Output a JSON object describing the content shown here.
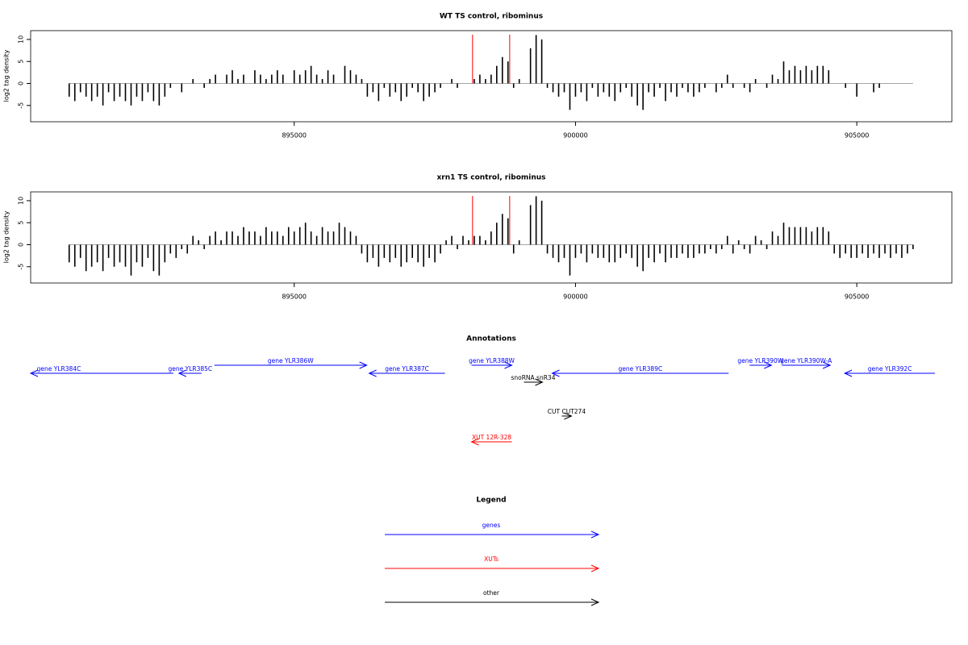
{
  "chart_data": [
    {
      "type": "bar",
      "title": "WT TS control, ribominus",
      "ylabel": "log2 tag density",
      "color": "#000000",
      "xlim": [
        890315,
        906690
      ],
      "ylim": [
        -8.7,
        12
      ],
      "xticks": [
        895000,
        900000,
        905000
      ],
      "yticks": [
        10,
        5,
        0,
        -5
      ],
      "markers": [
        898170,
        898830
      ],
      "marker_color": "#ff0000",
      "values": [
        -3,
        -4,
        -2,
        -3,
        -4,
        -3,
        -5,
        -2,
        -4,
        -3,
        -4,
        -5,
        -3,
        -4,
        -2,
        -4,
        -5,
        -3,
        -1,
        0,
        -2,
        0,
        1,
        0,
        -1,
        1,
        2,
        0,
        2,
        3,
        1,
        2,
        0,
        3,
        2,
        1,
        2,
        3,
        2,
        0,
        3,
        2,
        3,
        4,
        2,
        1,
        3,
        2,
        0,
        4,
        3,
        2,
        1,
        -3,
        -2,
        -4,
        -1,
        -3,
        -2,
        -4,
        -3,
        -1,
        -2,
        -4,
        -3,
        -2,
        -1,
        0,
        1,
        -1,
        0,
        0,
        1,
        2,
        1,
        2,
        4,
        6,
        5,
        -1,
        1,
        0,
        8,
        11,
        10,
        -1,
        -2,
        -3,
        -2,
        -6,
        -3,
        -2,
        -4,
        -1,
        -3,
        -2,
        -3,
        -4,
        -2,
        -1,
        -3,
        -5,
        -6,
        -2,
        -3,
        -1,
        -4,
        -2,
        -3,
        -1,
        -2,
        -3,
        -2,
        -1,
        0,
        -2,
        -1,
        2,
        -1,
        0,
        -1,
        -2,
        1,
        0,
        -1,
        2,
        1,
        5,
        3,
        4,
        3,
        4,
        3,
        4,
        4,
        3,
        0,
        0,
        -1,
        0,
        -3,
        0,
        0,
        -2,
        -1,
        0,
        0,
        0,
        0,
        0,
        0
      ]
    },
    {
      "type": "bar",
      "title": "xrn1 TS control, ribominus",
      "ylabel": "log2 tag density",
      "color": "#000000",
      "xlim": [
        890315,
        906690
      ],
      "ylim": [
        -8.7,
        12
      ],
      "xticks": [
        895000,
        900000,
        905000
      ],
      "yticks": [
        10,
        5,
        0,
        -5
      ],
      "markers": [
        898170,
        898830
      ],
      "marker_color": "#ff0000",
      "values": [
        -4,
        -5,
        -3,
        -6,
        -5,
        -4,
        -6,
        -3,
        -5,
        -4,
        -5,
        -7,
        -4,
        -5,
        -3,
        -6,
        -7,
        -4,
        -2,
        -3,
        -1,
        -2,
        2,
        1,
        -1,
        2,
        3,
        1,
        3,
        3,
        2,
        4,
        3,
        3,
        2,
        4,
        3,
        3,
        2,
        4,
        3,
        4,
        5,
        3,
        2,
        4,
        3,
        3,
        5,
        4,
        3,
        2,
        -2,
        -4,
        -3,
        -5,
        -3,
        -4,
        -3,
        -5,
        -4,
        -3,
        -4,
        -5,
        -3,
        -4,
        -2,
        1,
        2,
        -1,
        2,
        1,
        2,
        2,
        1,
        3,
        5,
        7,
        6,
        -2,
        1,
        0,
        9,
        11,
        10,
        -2,
        -3,
        -4,
        -3,
        -7,
        -3,
        -2,
        -4,
        -2,
        -3,
        -3,
        -4,
        -4,
        -3,
        -2,
        -3,
        -5,
        -6,
        -3,
        -4,
        -2,
        -4,
        -3,
        -3,
        -2,
        -3,
        -3,
        -2,
        -2,
        -1,
        -2,
        -1,
        2,
        -2,
        1,
        -1,
        -2,
        2,
        1,
        -1,
        3,
        2,
        5,
        4,
        4,
        4,
        4,
        3,
        4,
        4,
        3,
        -2,
        -3,
        -2,
        -3,
        -3,
        -2,
        -3,
        -2,
        -3,
        -2,
        -3,
        -2,
        -3,
        -2,
        -1
      ]
    }
  ],
  "annotations": {
    "title": "Annotations",
    "items": [
      {
        "label": "gene YLR384C",
        "color": "#0000ff",
        "start": 890315,
        "end": 892851,
        "strand": "-"
      },
      {
        "label": "gene YLR385C",
        "color": "#0000ff",
        "start": 892951,
        "end": 893352,
        "strand": "-"
      },
      {
        "label": "gene YLR386W",
        "color": "#0000ff",
        "start": 893582,
        "end": 896289,
        "strand": "+"
      },
      {
        "label": "gene YLR387C",
        "color": "#0000ff",
        "start": 896332,
        "end": 897679,
        "strand": "-"
      },
      {
        "label": "gene YLR388W",
        "color": "#0000ff",
        "start": 898152,
        "end": 898868,
        "strand": "+"
      },
      {
        "label": "snoRNA snR34",
        "color": "#000000",
        "start": 899083,
        "end": 899413,
        "strand": "+"
      },
      {
        "label": "gene YLR389C",
        "color": "#0000ff",
        "start": 899585,
        "end": 902722,
        "strand": "-"
      },
      {
        "label": "gene YLR390W",
        "color": "#0000ff",
        "start": 903095,
        "end": 903482,
        "strand": "+"
      },
      {
        "label": "gene YLR390W-A",
        "color": "#0000ff",
        "start": 903668,
        "end": 904527,
        "strand": "+"
      },
      {
        "label": "gene YLR392C",
        "color": "#0000ff",
        "start": 904785,
        "end": 906390,
        "strand": "-"
      },
      {
        "label": "CUT CUT274",
        "color": "#000000",
        "start": 899757,
        "end": 899928,
        "strand": "+"
      },
      {
        "label": "XUT 12R-328",
        "color": "#ff0000",
        "start": 898152,
        "end": 898868,
        "strand": "-"
      }
    ]
  },
  "legend": {
    "title": "Legend",
    "items": [
      {
        "label": "genes",
        "color": "#0000ff"
      },
      {
        "label": "XUTs",
        "color": "#ff0000"
      },
      {
        "label": "other",
        "color": "#000000"
      }
    ]
  }
}
